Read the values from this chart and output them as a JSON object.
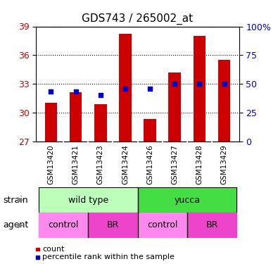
{
  "title": "GDS743 / 265002_at",
  "samples": [
    "GSM13420",
    "GSM13421",
    "GSM13423",
    "GSM13424",
    "GSM13426",
    "GSM13427",
    "GSM13428",
    "GSM13429"
  ],
  "bar_values": [
    31.0,
    32.1,
    30.9,
    38.2,
    29.3,
    34.2,
    38.0,
    35.5
  ],
  "percentile_values": [
    43,
    43,
    40,
    46,
    46,
    50,
    50,
    50
  ],
  "ymin": 27,
  "ymax": 39,
  "yticks": [
    27,
    30,
    33,
    36,
    39
  ],
  "right_yticks": [
    0,
    25,
    50,
    75,
    100
  ],
  "right_yticklabels": [
    "0",
    "25",
    "50",
    "75",
    "100%"
  ],
  "bar_color": "#cc0000",
  "percentile_color": "#0000cc",
  "bar_bottom": 27,
  "strain_wild_color": "#bbffbb",
  "strain_yucca_color": "#44dd44",
  "agent_control_color": "#ff88ee",
  "agent_br_color": "#ee44cc",
  "tick_bg_color": "#cccccc",
  "legend_items": [
    {
      "label": "count",
      "color": "#cc0000"
    },
    {
      "label": "percentile rank within the sample",
      "color": "#0000cc"
    }
  ],
  "left_tick_color": "#cc0000",
  "right_tick_color": "#0000cc"
}
